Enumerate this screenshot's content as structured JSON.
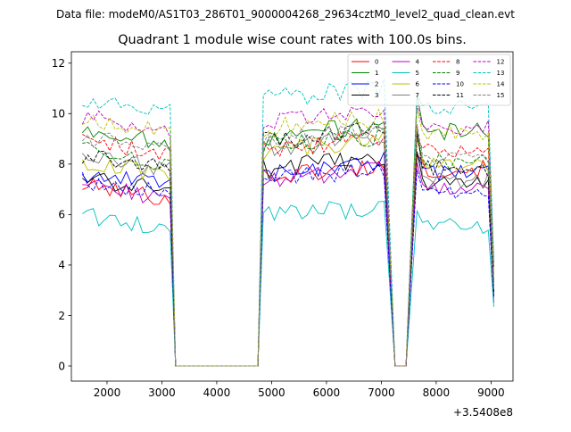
{
  "chart_data": {
    "type": "line",
    "suptitle": "Data file: modeM0/AS1T03_286T01_9000004268_29634cztM0_level2_quad_clean.evt",
    "title": "Quadrant 1 module wise count rates with 100.0s bins.",
    "xlabel": "",
    "ylabel": "",
    "offset_text": "+3.5408e8",
    "xlim": [
      1350,
      9400
    ],
    "ylim": [
      -0.6,
      12.45
    ],
    "xticks": [
      2000,
      3000,
      4000,
      5000,
      6000,
      7000,
      8000,
      9000
    ],
    "yticks": [
      0,
      2,
      4,
      6,
      8,
      10,
      12
    ],
    "legend_position": "top-right",
    "series": [
      {
        "name": "0",
        "color": "#ff0000",
        "dash": "solid",
        "base": 6.8,
        "g1": 7.5,
        "g2": 7.8,
        "pk": 8.5
      },
      {
        "name": "1",
        "color": "#008000",
        "dash": "solid",
        "base": 9.0,
        "g1": 9.1,
        "g2": 9.3,
        "pk": 10.6
      },
      {
        "name": "2",
        "color": "#0000ff",
        "dash": "solid",
        "base": 7.3,
        "g1": 7.7,
        "g2": 7.6,
        "pk": 8.4
      },
      {
        "name": "3",
        "color": "#000000",
        "dash": "solid",
        "base": 7.1,
        "g1": 7.8,
        "g2": 7.2,
        "pk": 8.6
      },
      {
        "name": "4",
        "color": "#bf00bf",
        "dash": "solid",
        "base": 6.8,
        "g1": 7.3,
        "g2": 7.0,
        "pk": 7.9
      },
      {
        "name": "5",
        "color": "#00bfbf",
        "dash": "solid",
        "base": 5.6,
        "g1": 5.9,
        "g2": 5.5,
        "pk": 6.1
      },
      {
        "name": "6",
        "color": "#bfbf00",
        "dash": "solid",
        "base": 7.7,
        "g1": 8.5,
        "g2": 8.0,
        "pk": 9.1
      },
      {
        "name": "7",
        "color": "#808080",
        "dash": "solid",
        "base": 7.9,
        "g1": 8.6,
        "g2": 7.4,
        "pk": 9.4
      },
      {
        "name": "8",
        "color": "#ff0000",
        "dash": "dashed",
        "base": 8.6,
        "g1": 8.6,
        "g2": 8.5,
        "pk": 9.0
      },
      {
        "name": "9",
        "color": "#008000",
        "dash": "dashed",
        "base": 8.2,
        "g1": 8.7,
        "g2": 8.1,
        "pk": 9.3
      },
      {
        "name": "10",
        "color": "#0000ff",
        "dash": "dashed",
        "base": 7.0,
        "g1": 7.4,
        "g2": 6.9,
        "pk": 7.6
      },
      {
        "name": "11",
        "color": "#000000",
        "dash": "dashed",
        "base": 8.0,
        "g1": 8.9,
        "g2": 7.8,
        "pk": 9.2
      },
      {
        "name": "12",
        "color": "#bf00bf",
        "dash": "dashed",
        "base": 9.5,
        "g1": 9.6,
        "g2": 9.5,
        "pk": 10.4
      },
      {
        "name": "13",
        "color": "#00bfbf",
        "dash": "dashed",
        "base": 10.2,
        "g1": 10.6,
        "g2": 10.3,
        "pk": 11.0
      },
      {
        "name": "14",
        "color": "#bfbf00",
        "dash": "dashed",
        "base": 9.4,
        "g1": 9.4,
        "g2": 9.3,
        "pk": 10.1
      },
      {
        "name": "15",
        "color": "#808080",
        "dash": "dashed",
        "base": 8.7,
        "g1": 8.9,
        "g2": 8.4,
        "pk": 9.6
      }
    ],
    "segments": {
      "seg1": [
        1550,
        3150
      ],
      "drop1_end": 3250,
      "gap1": [
        3250,
        4750
      ],
      "seg2": [
        4850,
        7050
      ],
      "gap2": [
        7250,
        7450
      ],
      "peak": 7650,
      "seg3": [
        7750,
        8950
      ],
      "end": 9050
    }
  }
}
